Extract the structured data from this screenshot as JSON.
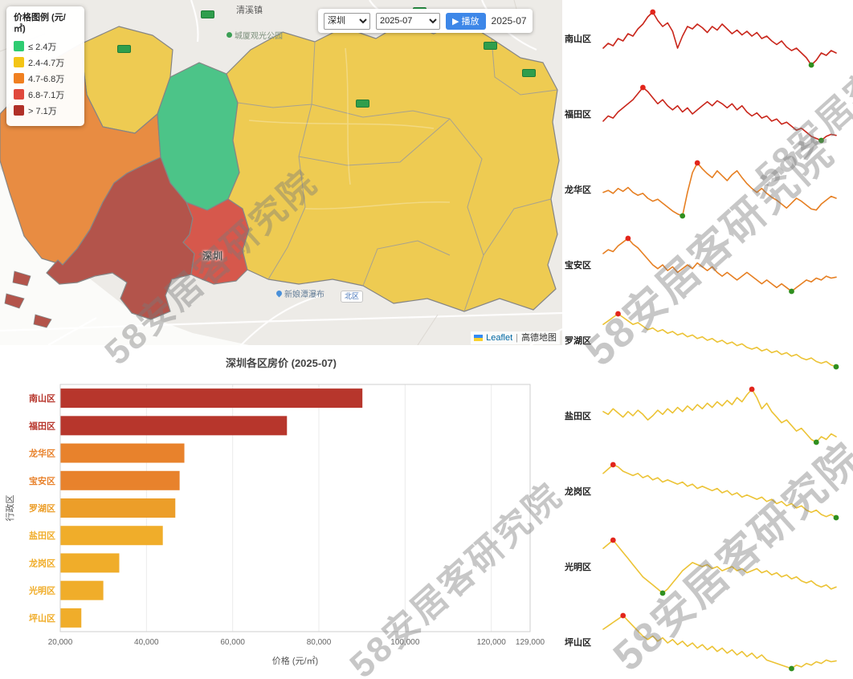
{
  "watermark": {
    "text": "58安居客研究院"
  },
  "map": {
    "legend": {
      "title": "价格图例 (元/㎡)",
      "bins": [
        {
          "label": "≤ 2.4万",
          "color": "#2ecc71"
        },
        {
          "label": "2.4-4.7万",
          "color": "#f3c516"
        },
        {
          "label": "4.7-6.8万",
          "color": "#f08021"
        },
        {
          "label": "6.8-7.1万",
          "color": "#e0483c"
        },
        {
          "label": "> 7.1万",
          "color": "#b03028"
        }
      ]
    },
    "region_fills": {
      "green": "#4cc488",
      "yellow": "#eecb52",
      "orange": "#e88c42",
      "red": "#d6584c",
      "dark_red": "#b3544b"
    },
    "controls": {
      "city_options": [
        "深圳"
      ],
      "city_value": "深圳",
      "month_options": [
        "2025-07"
      ],
      "month_value": "2025-07",
      "play_label": "▶ 播放",
      "current_month": "2025-07"
    },
    "place_labels": {
      "town_north": "清溪镇",
      "park_north": "城厦观光公园",
      "city": "深圳",
      "station": "北区",
      "waterfall": "新娘潭瀑布"
    },
    "attribution": {
      "leaflet": "Leaflet",
      "separator": "|",
      "tiles": "高德地图"
    }
  },
  "chart_data": [
    {
      "type": "bar",
      "orientation": "horizontal",
      "title": "深圳各区房价 (2025-07)",
      "categories": [
        "南山区",
        "福田区",
        "龙华区",
        "宝安区",
        "罗湖区",
        "盐田区",
        "龙岗区",
        "光明区",
        "坪山区"
      ],
      "values": [
        90000,
        72500,
        48700,
        47600,
        46600,
        43700,
        33600,
        29900,
        24800
      ],
      "colors": [
        "#b7362c",
        "#b7362c",
        "#e8822c",
        "#e8822c",
        "#ec9e29",
        "#f0ad2a",
        "#f0ad2a",
        "#f0ad2a",
        "#f0ad2a"
      ],
      "xlabel": "价格 (元/㎡)",
      "ylabel": "行政区",
      "xlim": [
        20000,
        129000
      ],
      "xticks": [
        20000,
        40000,
        60000,
        80000,
        100000,
        120000,
        129000
      ],
      "grid": true,
      "legend_position": "none"
    },
    {
      "type": "line",
      "subtype": "sparklines",
      "marker_max_color": "#e2251b",
      "marker_min_color": "#2f8f1f",
      "series": [
        {
          "name": "南山区",
          "color": "#c9261b",
          "values": [
            62,
            66,
            64,
            70,
            68,
            74,
            72,
            78,
            82,
            88,
            92,
            85,
            80,
            83,
            76,
            62,
            72,
            80,
            78,
            82,
            79,
            75,
            80,
            77,
            82,
            78,
            74,
            77,
            73,
            76,
            72,
            75,
            70,
            72,
            68,
            65,
            68,
            63,
            60,
            62,
            58,
            54,
            48,
            52,
            58,
            56,
            60,
            58
          ]
        },
        {
          "name": "福田区",
          "color": "#c9261b",
          "values": [
            55,
            60,
            58,
            64,
            68,
            72,
            76,
            82,
            88,
            84,
            78,
            72,
            76,
            70,
            66,
            70,
            64,
            68,
            62,
            66,
            70,
            74,
            70,
            75,
            72,
            68,
            72,
            66,
            70,
            64,
            60,
            63,
            58,
            60,
            55,
            57,
            52,
            54,
            50,
            46,
            48,
            44,
            40,
            38,
            36,
            40,
            42,
            41
          ]
        },
        {
          "name": "龙华区",
          "color": "#e67f22",
          "values": [
            58,
            60,
            57,
            62,
            59,
            63,
            58,
            55,
            57,
            52,
            49,
            51,
            47,
            43,
            39,
            36,
            34,
            58,
            78,
            88,
            82,
            77,
            73,
            80,
            75,
            70,
            76,
            80,
            73,
            67,
            62,
            58,
            62,
            57,
            53,
            50,
            46,
            42,
            47,
            52,
            49,
            45,
            41,
            40,
            46,
            50,
            54,
            52
          ]
        },
        {
          "name": "宝安区",
          "color": "#e67f22",
          "values": [
            70,
            74,
            72,
            78,
            82,
            86,
            80,
            76,
            70,
            64,
            58,
            54,
            58,
            52,
            56,
            50,
            54,
            58,
            54,
            60,
            56,
            52,
            56,
            50,
            46,
            50,
            46,
            42,
            46,
            50,
            46,
            42,
            38,
            42,
            38,
            34,
            38,
            34,
            30,
            34,
            38,
            42,
            40,
            44,
            42,
            46,
            44,
            45
          ]
        },
        {
          "name": "罗湖区",
          "color": "#ecc335",
          "values": [
            72,
            76,
            80,
            84,
            80,
            76,
            72,
            74,
            70,
            66,
            68,
            64,
            66,
            62,
            64,
            60,
            62,
            58,
            60,
            56,
            58,
            54,
            56,
            52,
            54,
            50,
            52,
            48,
            50,
            46,
            44,
            46,
            42,
            44,
            40,
            42,
            38,
            40,
            36,
            38,
            34,
            32,
            34,
            30,
            28,
            30,
            26,
            24
          ]
        },
        {
          "name": "盐田区",
          "color": "#ecc335",
          "values": [
            56,
            54,
            58,
            55,
            52,
            56,
            53,
            57,
            54,
            50,
            53,
            57,
            54,
            58,
            55,
            59,
            56,
            60,
            57,
            61,
            58,
            62,
            59,
            63,
            60,
            64,
            61,
            66,
            63,
            68,
            72,
            66,
            58,
            62,
            56,
            52,
            48,
            50,
            46,
            42,
            44,
            40,
            36,
            34,
            38,
            36,
            40,
            38
          ]
        },
        {
          "name": "龙岗区",
          "color": "#ecc335",
          "values": [
            66,
            70,
            74,
            72,
            68,
            66,
            64,
            66,
            62,
            64,
            60,
            62,
            58,
            60,
            58,
            56,
            58,
            54,
            56,
            52,
            54,
            52,
            50,
            52,
            48,
            50,
            46,
            48,
            44,
            46,
            44,
            42,
            44,
            40,
            42,
            38,
            40,
            36,
            38,
            34,
            36,
            32,
            30,
            32,
            28,
            26,
            28,
            25
          ]
        },
        {
          "name": "光明区",
          "color": "#ecc335",
          "values": [
            74,
            78,
            82,
            76,
            70,
            64,
            58,
            52,
            46,
            42,
            38,
            34,
            30,
            34,
            40,
            46,
            52,
            56,
            60,
            58,
            56,
            58,
            54,
            56,
            52,
            54,
            56,
            52,
            54,
            50,
            52,
            54,
            50,
            52,
            48,
            50,
            46,
            48,
            44,
            46,
            42,
            40,
            42,
            38,
            36,
            38,
            34,
            36
          ]
        },
        {
          "name": "坪山区",
          "color": "#ecc335",
          "values": [
            68,
            72,
            76,
            80,
            84,
            78,
            72,
            66,
            60,
            56,
            60,
            54,
            58,
            52,
            56,
            50,
            54,
            48,
            52,
            46,
            50,
            44,
            48,
            42,
            46,
            40,
            44,
            38,
            42,
            36,
            40,
            34,
            38,
            32,
            30,
            28,
            26,
            24,
            22,
            26,
            24,
            28,
            26,
            30,
            28,
            32,
            30,
            31
          ]
        }
      ]
    }
  ]
}
